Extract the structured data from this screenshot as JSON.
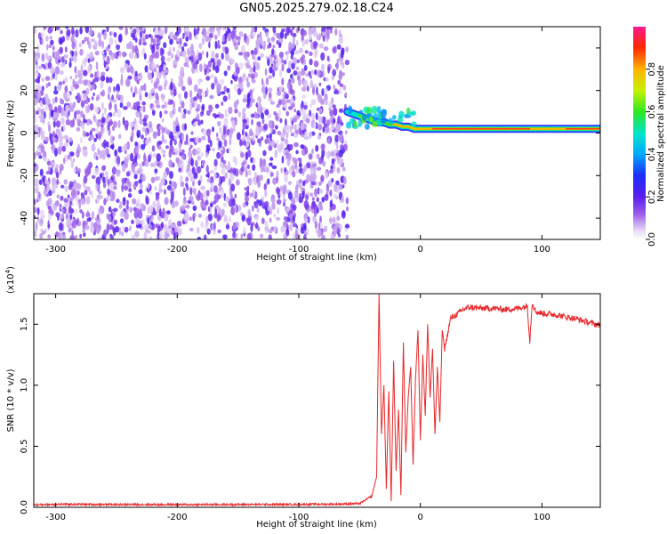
{
  "figure_title": "GN05.2025.279.02.18.C24",
  "chart_data": [
    {
      "type": "heatmap",
      "title": "GN05.2025.279.02.18.C24",
      "xlabel": "Height of straight line (km)",
      "ylabel": "Frequency (Hz)",
      "xlim": [
        -318,
        148
      ],
      "ylim": [
        -50,
        50
      ],
      "xticks": [
        -300,
        -200,
        -100,
        0,
        100
      ],
      "xtick_labels": [
        "-300",
        "-200",
        "-100",
        "0",
        "100"
      ],
      "yticks": [
        -40,
        -20,
        0,
        20,
        40
      ],
      "ytick_labels": [
        "-40",
        "-20",
        "0",
        "20",
        "40"
      ],
      "noise_region_x": [
        -318,
        -60
      ],
      "signal_track": {
        "x": [
          -60,
          -55,
          -50,
          -45,
          -40,
          -35,
          -30,
          -25,
          -20,
          -15,
          -10,
          -5,
          0,
          10,
          20,
          30,
          40,
          50,
          60,
          70,
          80,
          90,
          100,
          110,
          120,
          130,
          148
        ],
        "frequency_hz": [
          10,
          9,
          8,
          7,
          6,
          5,
          5,
          4,
          4,
          3,
          3,
          2,
          2,
          2,
          2,
          2,
          2,
          2,
          2,
          2,
          2,
          2,
          2,
          2,
          2,
          2,
          2
        ],
        "normalized_amplitude": [
          0.45,
          0.55,
          0.6,
          0.65,
          0.6,
          0.7,
          0.75,
          0.8,
          0.85,
          0.85,
          0.9,
          0.9,
          0.9,
          0.92,
          0.93,
          0.93,
          0.93,
          0.95,
          0.97,
          0.97,
          0.98,
          0.98,
          0.85,
          0.9,
          0.93,
          0.92,
          0.93
        ]
      },
      "colorbar": {
        "label": "Normalized spectral amplitude",
        "range": [
          0,
          1
        ],
        "ticks": [
          0.0,
          0.2,
          0.4,
          0.6,
          0.8
        ],
        "tick_labels": [
          "0.0",
          "0.2",
          "0.4",
          "0.6",
          "0.8"
        ]
      }
    },
    {
      "type": "line",
      "xlabel": "Height of straight line (km)",
      "ylabel": "SNR (10 * v/v)",
      "yscale_label": "(x10",
      "yscale_exp": "4",
      "yscale_close": ")",
      "xlim": [
        -318,
        148
      ],
      "ylim": [
        0,
        17500
      ],
      "xticks": [
        -300,
        -200,
        -100,
        0,
        100
      ],
      "xtick_labels": [
        "-300",
        "-200",
        "-100",
        "0",
        "100"
      ],
      "yticks": [
        0,
        5000,
        10000,
        15000
      ],
      "ytick_labels": [
        "0.0",
        "0.5",
        "1.0",
        "1.5"
      ],
      "series": [
        {
          "name": "SNR",
          "color": "#e8282a",
          "x": [
            -318,
            -300,
            -250,
            -200,
            -150,
            -100,
            -70,
            -50,
            -40,
            -36,
            -34,
            -32,
            -30,
            -28,
            -26,
            -24,
            -22,
            -20,
            -18,
            -16,
            -14,
            -12,
            -10,
            -8,
            -6,
            -4,
            -2,
            0,
            2,
            4,
            6,
            8,
            10,
            12,
            14,
            16,
            18,
            20,
            25,
            30,
            35,
            40,
            50,
            60,
            70,
            80,
            88,
            90,
            92,
            95,
            100,
            110,
            120,
            130,
            140,
            148
          ],
          "y": [
            200,
            250,
            230,
            220,
            230,
            240,
            260,
            300,
            900,
            2500,
            17500,
            6000,
            10000,
            1500,
            9500,
            500,
            12000,
            3000,
            8000,
            1000,
            13500,
            4500,
            9000,
            11500,
            3500,
            10500,
            14500,
            5500,
            12500,
            7500,
            15000,
            9000,
            13000,
            6000,
            11500,
            7000,
            14500,
            13000,
            15500,
            15800,
            16200,
            16400,
            16300,
            16300,
            16200,
            16300,
            16500,
            13600,
            16800,
            16000,
            15900,
            15800,
            15600,
            15400,
            15100,
            14900
          ]
        }
      ]
    }
  ]
}
